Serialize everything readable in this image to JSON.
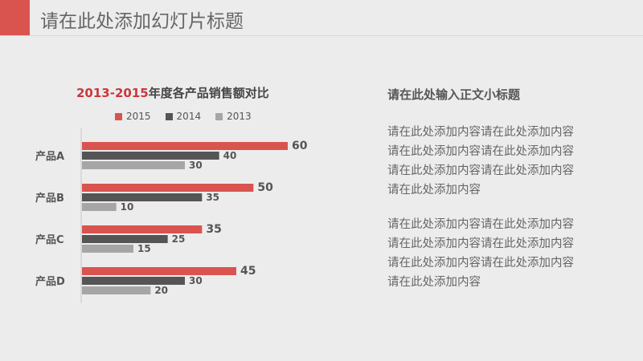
{
  "slide": {
    "title": "请在此处添加幻灯片标题",
    "subtitle": "请在此处输入正文小标题",
    "paragraphs": [
      [
        "请在此处添加内容请在此处添加内容",
        "请在此处添加内容请在此处添加内容",
        "请在此处添加内容请在此处添加内容",
        "请在此处添加内容"
      ],
      [
        "请在此处添加内容请在此处添加内容",
        "请在此处添加内容请在此处添加内容",
        "请在此处添加内容请在此处添加内容",
        "请在此处添加内容"
      ]
    ]
  },
  "colors": {
    "accent": "#d9534f",
    "s2015": "#d9534f",
    "s2014": "#555555",
    "s2013": "#a6a6a6"
  },
  "chart_data": {
    "type": "bar",
    "orientation": "horizontal",
    "title_accent": "2013-2015",
    "title_rest": "年度各产品销售额对比",
    "categories": [
      "产品A",
      "产品B",
      "产品C",
      "产品D"
    ],
    "series": [
      {
        "name": "2015",
        "values": [
          60,
          50,
          35,
          45
        ]
      },
      {
        "name": "2014",
        "values": [
          40,
          35,
          25,
          30
        ]
      },
      {
        "name": "2013",
        "values": [
          30,
          10,
          15,
          20
        ]
      }
    ],
    "xlim": [
      0,
      60
    ],
    "legend": "top",
    "grid": false
  }
}
